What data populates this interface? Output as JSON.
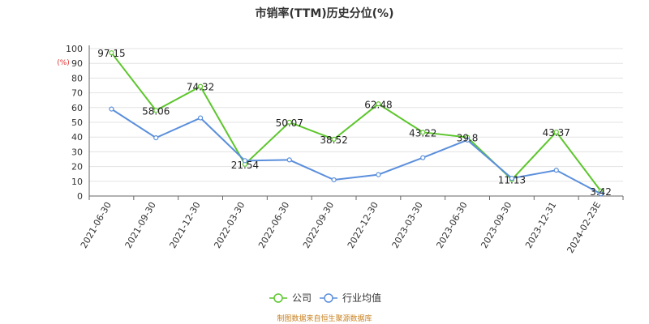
{
  "chart_data": {
    "type": "line",
    "title": "市销率(TTM)历史分位(%)",
    "ylabel": "(%)",
    "ylim": [
      0,
      100
    ],
    "yticks": [
      0,
      10,
      20,
      30,
      40,
      50,
      60,
      70,
      80,
      90,
      100
    ],
    "grid": true,
    "legend_position": "bottom",
    "categories": [
      "2021-06-30",
      "2021-09-30",
      "2021-12-30",
      "2022-03-30",
      "2022-06-30",
      "2022-09-30",
      "2022-12-30",
      "2023-03-30",
      "2023-06-30",
      "2023-09-30",
      "2023-12-31",
      "2024-02-23E"
    ],
    "series": [
      {
        "name": "公司",
        "color": "#5cc62c",
        "show_labels": true,
        "values": [
          97.15,
          58.06,
          74.32,
          21.54,
          50.07,
          38.52,
          62.48,
          43.22,
          39.8,
          11.13,
          43.37,
          3.42
        ]
      },
      {
        "name": "行业均值",
        "color": "#5b8fdc",
        "show_labels": false,
        "values": [
          59,
          39.5,
          53,
          24,
          24.5,
          11,
          14.5,
          26,
          38,
          12,
          17.5,
          1.5
        ]
      }
    ],
    "source": "制图数据来自恒生聚源数据库"
  }
}
